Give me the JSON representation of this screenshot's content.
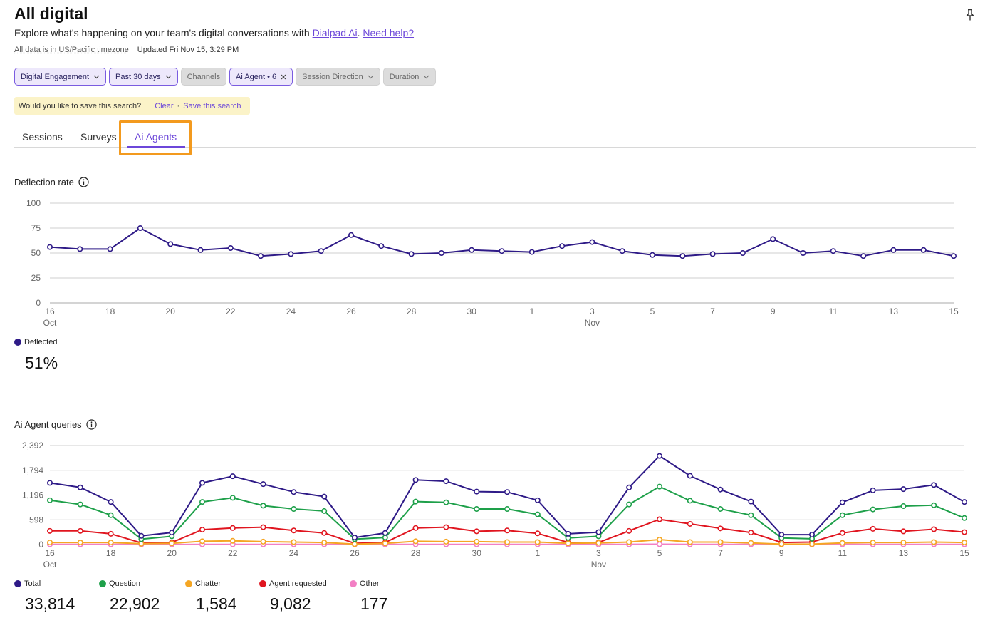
{
  "header": {
    "title": "All digital",
    "subtitle_prefix": "Explore what's happening on your team's digital conversations with ",
    "dialpad_link": "Dialpad Ai",
    "subtitle_sep": ". ",
    "help_link": "Need help?",
    "timezone": "All data is in US/Pacific timezone",
    "updated": "Updated Fri Nov 15, 3:29 PM"
  },
  "filters": [
    {
      "label": "Digital Engagement",
      "state": "active",
      "icon": "chevron-down-icon"
    },
    {
      "label": "Past 30 days",
      "state": "active",
      "icon": "chevron-down-icon"
    },
    {
      "label": "Channels",
      "state": "inactive",
      "icon": ""
    },
    {
      "label": "Ai Agent • 6",
      "state": "active",
      "icon": "close-icon"
    },
    {
      "label": "Session Direction",
      "state": "inactive",
      "icon": "chevron-down-icon"
    },
    {
      "label": "Duration",
      "state": "inactive",
      "icon": "chevron-down-icon"
    }
  ],
  "save_banner": {
    "question": "Would you like to save this search?",
    "clear": "Clear",
    "separator": "·",
    "save": "Save this search"
  },
  "tabs": [
    {
      "label": "Sessions",
      "selected": false
    },
    {
      "label": "Surveys",
      "selected": false
    },
    {
      "label": "Ai Agents",
      "selected": true
    }
  ],
  "colors": {
    "accent": "#6c47d9",
    "total": "#2e1a87",
    "question": "#1ea04a",
    "chatter": "#f5a623",
    "agent_requested": "#e0151f",
    "other": "#f27fc4",
    "highlight": "#f39a1e"
  },
  "deflection": {
    "title": "Deflection rate",
    "legend_label": "Deflected",
    "value": "51%"
  },
  "queries": {
    "title": "Ai Agent queries",
    "totals": [
      {
        "label": "Total",
        "value": "33,814"
      },
      {
        "label": "Question",
        "value": "22,902"
      },
      {
        "label": "Chatter",
        "value": "1,584"
      },
      {
        "label": "Agent requested",
        "value": "9,082"
      },
      {
        "label": "Other",
        "value": "177"
      }
    ]
  },
  "chart_data": [
    {
      "type": "line",
      "title": "Deflection rate",
      "x_ticks": [
        "16",
        "18",
        "20",
        "22",
        "24",
        "26",
        "28",
        "30",
        "1",
        "3",
        "5",
        "7",
        "9",
        "11",
        "13",
        "15"
      ],
      "x_month_labels": [
        {
          "at": "16",
          "label": "Oct"
        },
        {
          "at": "3",
          "label": "Nov"
        }
      ],
      "x": [
        "Oct 16",
        "Oct 17",
        "Oct 18",
        "Oct 19",
        "Oct 20",
        "Oct 21",
        "Oct 22",
        "Oct 23",
        "Oct 24",
        "Oct 25",
        "Oct 26",
        "Oct 27",
        "Oct 28",
        "Oct 29",
        "Oct 30",
        "Oct 31",
        "Nov 1",
        "Nov 2",
        "Nov 3",
        "Nov 4",
        "Nov 5",
        "Nov 6",
        "Nov 7",
        "Nov 8",
        "Nov 9",
        "Nov 10",
        "Nov 11",
        "Nov 12",
        "Nov 13",
        "Nov 14",
        "Nov 15"
      ],
      "y_ticks": [
        "0",
        "25",
        "50",
        "75",
        "100"
      ],
      "ylim": [
        0,
        100
      ],
      "grid": true,
      "series": [
        {
          "name": "Deflected",
          "values": [
            56,
            54,
            54,
            75,
            59,
            53,
            55,
            47,
            49,
            52,
            68,
            57,
            49,
            50,
            53,
            52,
            51,
            57,
            61,
            52,
            48,
            47,
            49,
            50,
            64,
            50,
            52,
            47,
            53,
            53,
            47
          ]
        }
      ]
    },
    {
      "type": "line",
      "title": "Ai Agent queries",
      "x_ticks": [
        "16",
        "18",
        "20",
        "22",
        "24",
        "26",
        "28",
        "30",
        "1",
        "3",
        "5",
        "7",
        "9",
        "11",
        "13",
        "15"
      ],
      "x_month_labels": [
        {
          "at": "16",
          "label": "Oct"
        },
        {
          "at": "3",
          "label": "Nov"
        }
      ],
      "x": [
        "Oct 16",
        "Oct 17",
        "Oct 18",
        "Oct 19",
        "Oct 20",
        "Oct 21",
        "Oct 22",
        "Oct 23",
        "Oct 24",
        "Oct 25",
        "Oct 26",
        "Oct 27",
        "Oct 28",
        "Oct 29",
        "Oct 30",
        "Oct 31",
        "Nov 1",
        "Nov 2",
        "Nov 3",
        "Nov 4",
        "Nov 5",
        "Nov 6",
        "Nov 7",
        "Nov 8",
        "Nov 9",
        "Nov 10",
        "Nov 11",
        "Nov 12",
        "Nov 13",
        "Nov 14",
        "Nov 15"
      ],
      "y_ticks": [
        "0",
        "598",
        "1,196",
        "1,794",
        "2,392"
      ],
      "ylim": [
        0,
        2392
      ],
      "grid": true,
      "series": [
        {
          "name": "Total",
          "values": [
            1490,
            1380,
            1030,
            210,
            290,
            1490,
            1650,
            1460,
            1270,
            1160,
            170,
            280,
            1560,
            1530,
            1280,
            1270,
            1070,
            260,
            300,
            1380,
            2140,
            1660,
            1330,
            1040,
            240,
            240,
            1020,
            1310,
            1340,
            1440,
            1030
          ]
        },
        {
          "name": "Question",
          "values": [
            1070,
            970,
            710,
            130,
            200,
            1030,
            1130,
            940,
            860,
            810,
            130,
            170,
            1040,
            1020,
            860,
            860,
            730,
            160,
            200,
            970,
            1400,
            1060,
            860,
            710,
            160,
            140,
            710,
            850,
            930,
            950,
            640
          ]
        },
        {
          "name": "Chatter",
          "values": [
            50,
            50,
            50,
            20,
            30,
            80,
            90,
            70,
            60,
            50,
            10,
            30,
            80,
            70,
            70,
            60,
            60,
            30,
            40,
            60,
            120,
            60,
            60,
            40,
            10,
            10,
            40,
            50,
            50,
            60,
            50
          ]
        },
        {
          "name": "Agent requested",
          "values": [
            330,
            330,
            260,
            40,
            50,
            360,
            400,
            420,
            340,
            280,
            30,
            50,
            400,
            420,
            320,
            340,
            270,
            50,
            50,
            330,
            610,
            500,
            390,
            290,
            50,
            60,
            280,
            380,
            320,
            370,
            300
          ]
        },
        {
          "name": "Other",
          "values": [
            5,
            5,
            5,
            2,
            2,
            5,
            6,
            5,
            5,
            5,
            2,
            3,
            6,
            6,
            5,
            5,
            5,
            2,
            3,
            5,
            8,
            6,
            5,
            5,
            2,
            2,
            5,
            5,
            5,
            6,
            5
          ]
        }
      ]
    }
  ]
}
